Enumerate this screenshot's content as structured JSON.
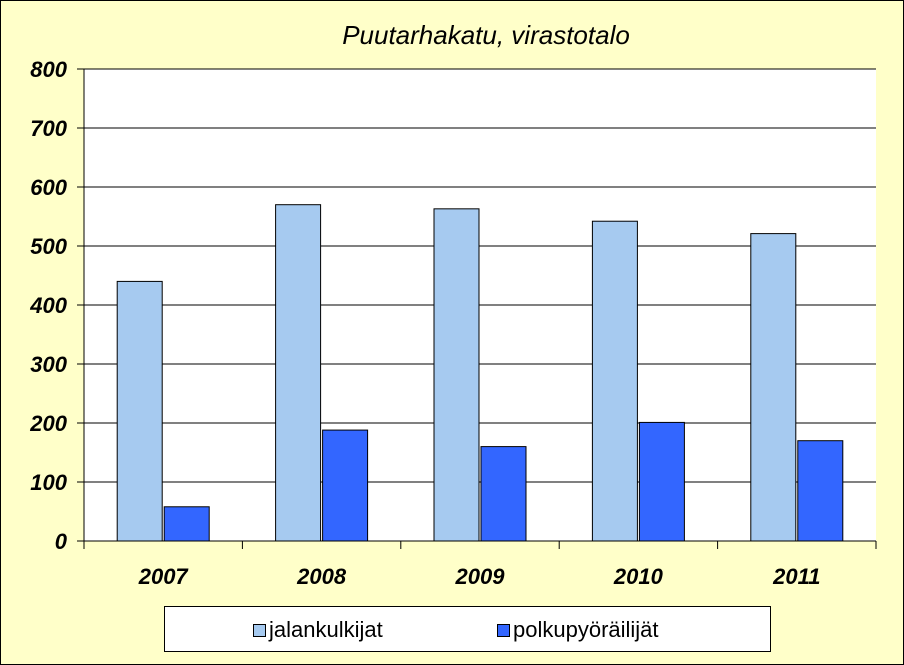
{
  "chart_data": {
    "type": "bar",
    "title": "Puutarhakatu, virastotalo",
    "categories": [
      "2007",
      "2008",
      "2009",
      "2010",
      "2011"
    ],
    "series": [
      {
        "name": "jalankulkijat",
        "color": "#A6CAF0",
        "values": [
          440,
          570,
          563,
          542,
          521
        ]
      },
      {
        "name": "polkupyöräilijät",
        "color": "#3366FF",
        "values": [
          58,
          188,
          160,
          201,
          170
        ]
      }
    ],
    "ylim": [
      0,
      800
    ],
    "yticks": [
      0,
      100,
      200,
      300,
      400,
      500,
      600,
      700,
      800
    ],
    "grid": true,
    "legend": "bottom",
    "plot_background": "#FFFFFF",
    "page_background": "#FFFFC9"
  }
}
